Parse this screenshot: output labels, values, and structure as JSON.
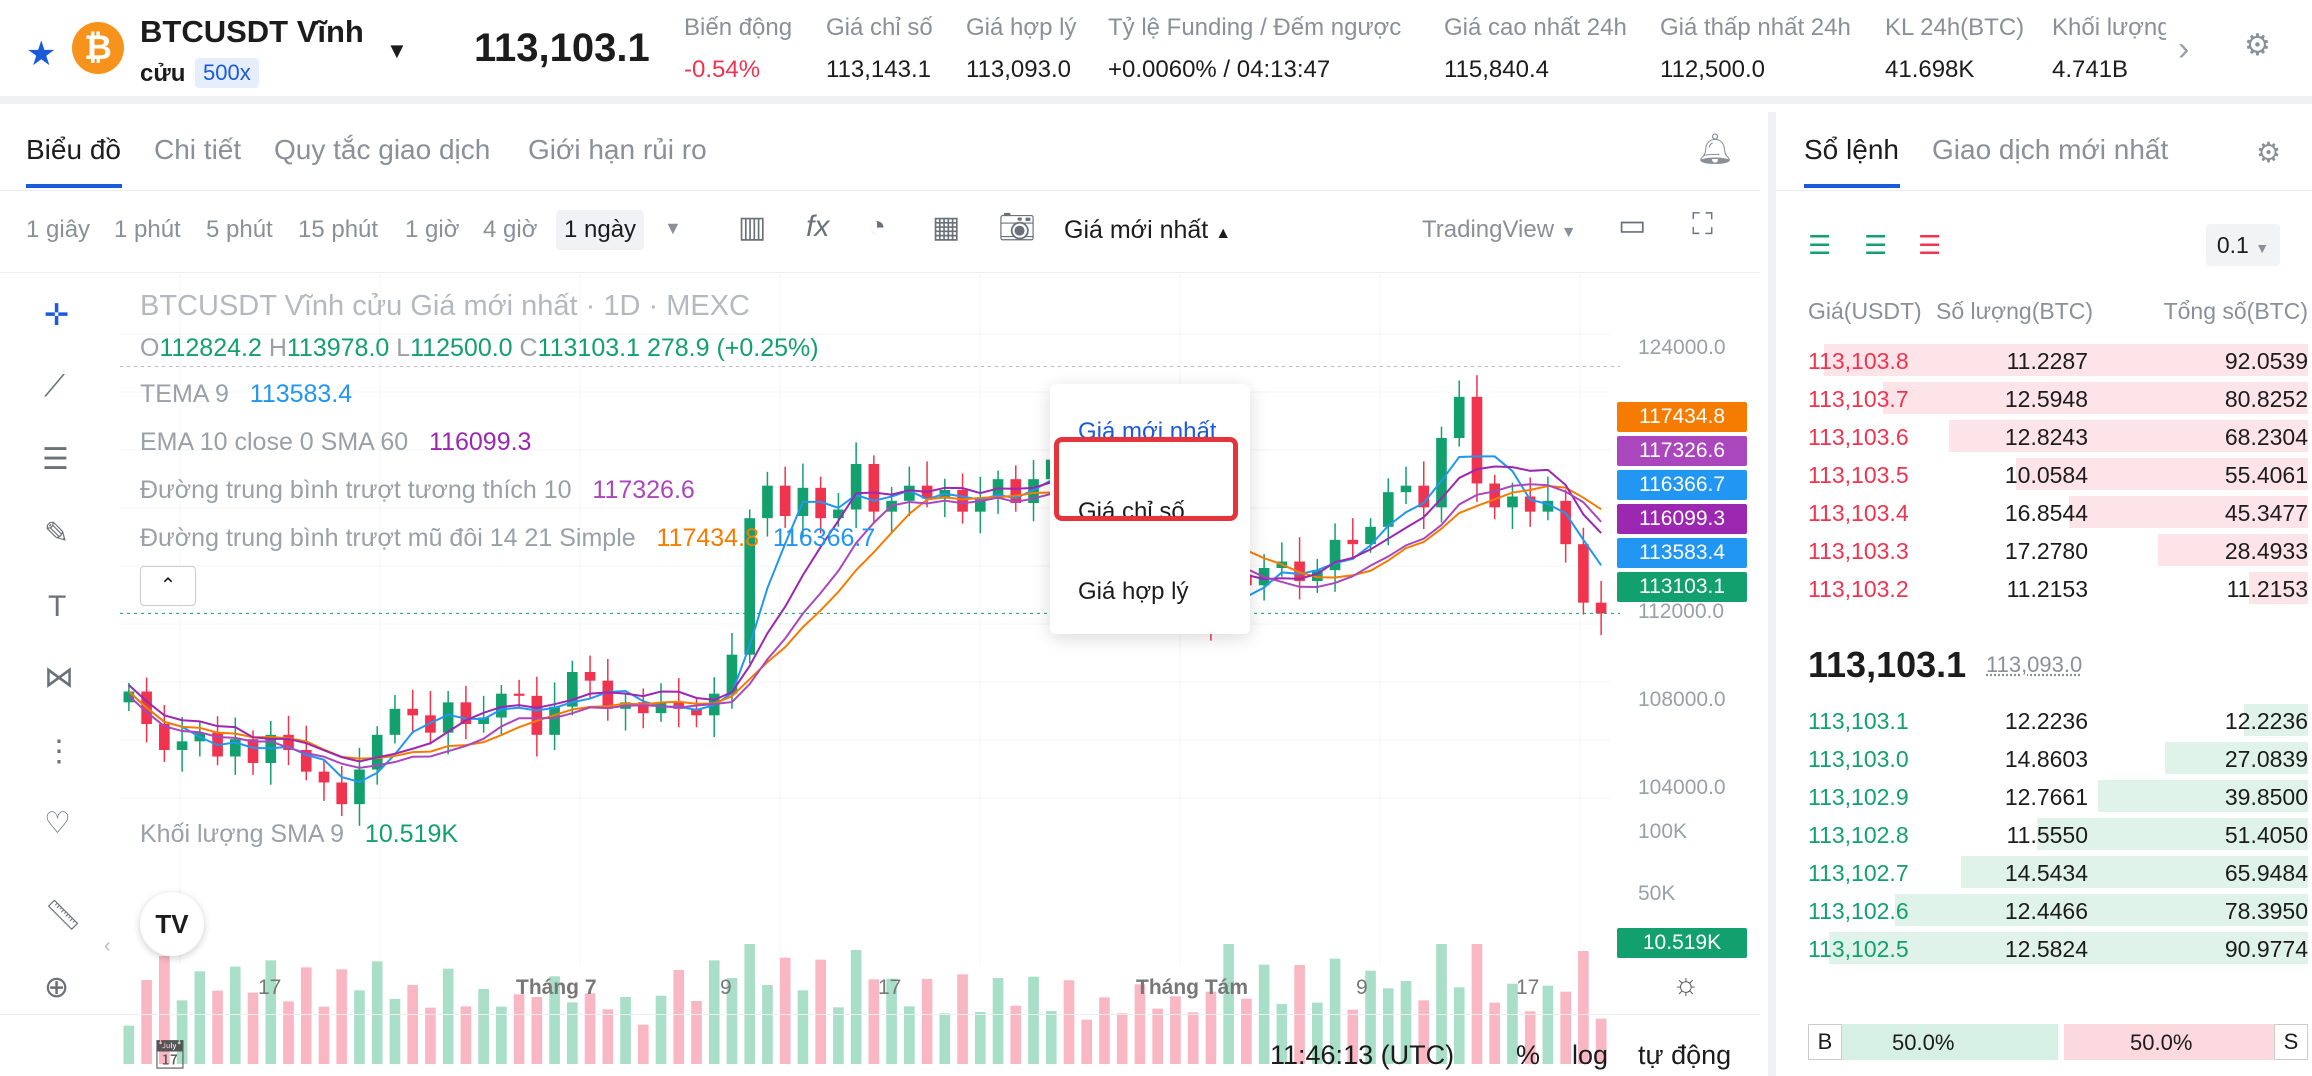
{
  "header": {
    "symbol": "BTCUSDT Vĩnh",
    "symbol_line2": "cửu",
    "leverage": "500x",
    "last_price": "113,103.1",
    "stats": [
      {
        "label": "Biến động",
        "value": "-0.54%"
      },
      {
        "label": "Giá chỉ số",
        "value": "113,143.1"
      },
      {
        "label": "Giá hợp lý",
        "value": "113,093.0"
      },
      {
        "label": "Tỷ lệ Funding / Đếm ngược",
        "value": "+0.0060%  /  04:13:47"
      },
      {
        "label": "Giá cao nhất 24h",
        "value": "115,840.4"
      },
      {
        "label": "Giá thấp nhất 24h",
        "value": "112,500.0"
      },
      {
        "label": "KL 24h(BTC)",
        "value": "41.698K"
      },
      {
        "label": "Khối lượng",
        "value": "4.741B"
      }
    ]
  },
  "left_tabs": [
    "Biểu đồ",
    "Chi tiết",
    "Quy tắc giao dịch",
    "Giới hạn rủi ro"
  ],
  "timeframes": [
    "1 giây",
    "1 phút",
    "5 phút",
    "15 phút",
    "1 giờ",
    "4 giờ",
    "1 ngày"
  ],
  "price_type": "Giá mới nhất",
  "tradingview": "TradingView",
  "dropdown": {
    "items": [
      "Giá mới nhất",
      "Giá chỉ số",
      "Giá hợp lý"
    ]
  },
  "chart_data": {
    "type": "candlestick",
    "title": "BTCUSDT Vĩnh cửu Giá mới nhất · 1D · MEXC",
    "ohlc_line": {
      "O": "112824.2",
      "H": "113978.0",
      "L": "112500.0",
      "C": "113103.1",
      "chg": "278.9 (+0.25%)"
    },
    "indicators": [
      {
        "name": "TEMA 9",
        "value": "113583.4",
        "color": "#2196f3"
      },
      {
        "name": "EMA 10 close 0 SMA 60",
        "value": "116099.3",
        "color": "#9c27b0"
      },
      {
        "name": "Đường trung bình trượt tương thích 10",
        "value": "117326.6",
        "color": "#ab47bc"
      },
      {
        "name": "Đường trung bình trượt mũ đôi 14 21 Simple",
        "value": "117434.8",
        "value2": "116366.7",
        "color": "#f57c00",
        "color2": "#2196f3"
      }
    ],
    "volume_label": "Khối lượng SMA 9",
    "volume_value": "10.519K",
    "y_ticks": [
      "124000.0",
      "112000.0",
      "108000.0",
      "104000.0"
    ],
    "vol_ticks": [
      "100K",
      "50K"
    ],
    "x_ticks": [
      "17",
      "Tháng 7",
      "9",
      "17",
      "Tháng Tám",
      "9",
      "17"
    ],
    "price_tags": [
      {
        "v": "117434.8",
        "c": "#f57c00"
      },
      {
        "v": "117326.6",
        "c": "#ab47bc"
      },
      {
        "v": "116366.7",
        "c": "#2196f3"
      },
      {
        "v": "116099.3",
        "c": "#9c27b0"
      },
      {
        "v": "113583.4",
        "c": "#2196f3"
      },
      {
        "v": "113103.1",
        "c": "#12a06e"
      }
    ],
    "vol_tag": "10.519K",
    "ylim": [
      102000,
      126000
    ]
  },
  "footer": {
    "time": "11:46:13 (UTC)",
    "pct": "%",
    "log": "log",
    "auto": "tự động"
  },
  "orderbook": {
    "tabs": [
      "Sổ lệnh",
      "Giao dịch mới nhất"
    ],
    "precision": "0.1",
    "cols": [
      "Giá(USDT)",
      "Số lượng(BTC)",
      "Tổng số(BTC)"
    ],
    "asks": [
      [
        "113,103.8",
        "11.2287",
        "92.0539"
      ],
      [
        "113,103.7",
        "12.5948",
        "80.8252"
      ],
      [
        "113,103.6",
        "12.8243",
        "68.2304"
      ],
      [
        "113,103.5",
        "10.0584",
        "55.4061"
      ],
      [
        "113,103.4",
        "16.8544",
        "45.3477"
      ],
      [
        "113,103.3",
        "17.2780",
        "28.4933"
      ],
      [
        "113,103.2",
        "11.2153",
        "11.2153"
      ]
    ],
    "mid": "113,103.1",
    "mark": "113,093.0",
    "bids": [
      [
        "113,103.1",
        "12.2236",
        "12.2236"
      ],
      [
        "113,103.0",
        "14.8603",
        "27.0839"
      ],
      [
        "113,102.9",
        "12.7661",
        "39.8500"
      ],
      [
        "113,102.8",
        "11.5550",
        "51.4050"
      ],
      [
        "113,102.7",
        "14.5434",
        "65.9484"
      ],
      [
        "113,102.6",
        "12.4466",
        "78.3950"
      ],
      [
        "113,102.5",
        "12.5824",
        "90.9774"
      ]
    ],
    "buy_label": "B",
    "buy_pct": "50.0%",
    "sell_pct": "50.0%",
    "sell_label": "S"
  }
}
